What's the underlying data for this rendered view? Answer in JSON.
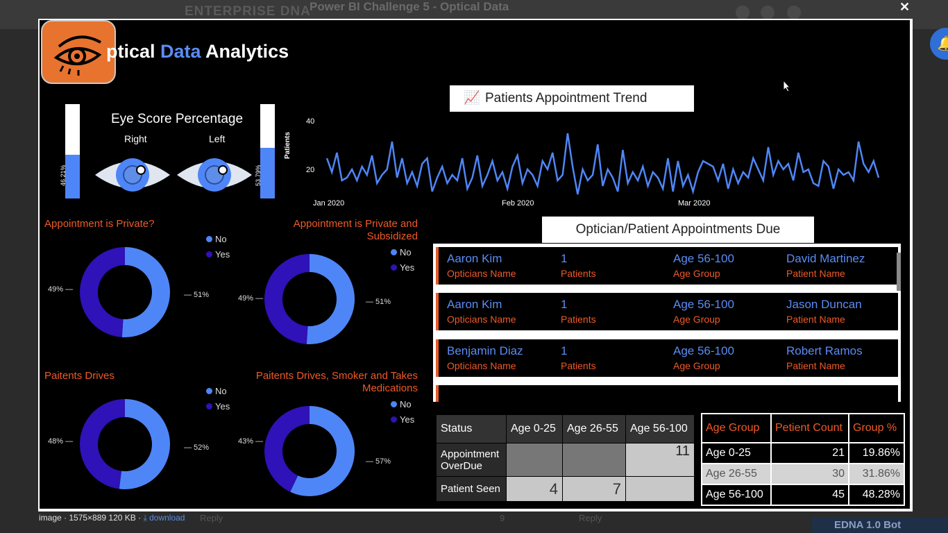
{
  "background": {
    "brand": "ENTERPRISE DNA",
    "page_title": "Power BI Challenge 5 - Optical Data",
    "caption_file": "image · 1575×889 120 KB ·",
    "caption_download": "download",
    "reply_label": "Reply",
    "reply_count": "9",
    "bot_name": "EDNA 1.0 Bot"
  },
  "report": {
    "title_start": "ptical ",
    "title_accent": "Data",
    "title_end": " Analytics",
    "eye_score": {
      "title": "Eye Score Percentage",
      "right_label": "Right",
      "left_label": "Left",
      "right_pct": "46.21%",
      "left_pct": "53.79%",
      "right_value": 0.4621,
      "left_value": 0.5379
    },
    "trend_title": "Patients Appointment Trend",
    "appointments_title": "Optician/Patient Appointments Due",
    "appointments": [
      {
        "optician": "Aaron Kim",
        "patients": "1",
        "age_group": "Age 56-100",
        "patient": "David Martinez"
      },
      {
        "optician": "Aaron Kim",
        "patients": "1",
        "age_group": "Age 56-100",
        "patient": "Jason Duncan"
      },
      {
        "optician": "Benjamin Diaz",
        "patients": "1",
        "age_group": "Age 56-100",
        "patient": "Robert Ramos"
      }
    ],
    "appointment_labels": {
      "optician": "Opticians Name",
      "patients": "Patients",
      "age_group": "Age Group",
      "patient": "Patient Name"
    },
    "status_table": {
      "headers": [
        "Status",
        "Age 0-25",
        "Age 26-55",
        "Age 56-100"
      ],
      "rows": [
        {
          "label": "Appointment OverDue",
          "values": [
            "",
            "",
            "11"
          ]
        },
        {
          "label": "Patient Seen",
          "values": [
            "4",
            "7",
            ""
          ]
        }
      ]
    },
    "age_table": {
      "headers": [
        "Age Group",
        "Petient Count",
        "Group %"
      ],
      "rows": [
        [
          "Age 0-25",
          "21",
          "19.86%"
        ],
        [
          "Age 26-55",
          "30",
          "31.86%"
        ],
        [
          "Age 56-100",
          "45",
          "48.28%"
        ]
      ]
    }
  },
  "colors": {
    "accent": "#5b8cf3",
    "orange": "#f05a28",
    "no": "#4f86f7",
    "yes": "#2f12b8"
  },
  "chart_data": [
    {
      "type": "line",
      "title": "Patients Appointment Trend",
      "ylabel": "Patients",
      "x_ticks": [
        "Jan 2020",
        "Feb 2020",
        "Mar 2020"
      ],
      "y_ticks": [
        20,
        40
      ],
      "ylim": [
        14,
        44
      ],
      "y": [
        28,
        23,
        30,
        20,
        21,
        24,
        20,
        25,
        22,
        29,
        19,
        22,
        24,
        34,
        21,
        28,
        19,
        23,
        18,
        26,
        28,
        16,
        21,
        25,
        19,
        22,
        20,
        28,
        17,
        21,
        29,
        18,
        22,
        27,
        20,
        23,
        17,
        25,
        29,
        19,
        24,
        22,
        18,
        27,
        24,
        30,
        20,
        22,
        37,
        25,
        15,
        24,
        20,
        22,
        33,
        18,
        24,
        21,
        16,
        31,
        19,
        23,
        20,
        25,
        18,
        23,
        21,
        17,
        28,
        16,
        27,
        18,
        22,
        16,
        23,
        27,
        26,
        25,
        20,
        26,
        17,
        24,
        19,
        23,
        21,
        28,
        24,
        20,
        32,
        22,
        27,
        24,
        26,
        20,
        30,
        23,
        24,
        19,
        18,
        27,
        25,
        17,
        24,
        22,
        23,
        20,
        34,
        26,
        23,
        27,
        21
      ]
    },
    {
      "type": "pie",
      "title": "Appointment is Private?",
      "labels": [
        "No",
        "Yes"
      ],
      "values": [
        51,
        49
      ]
    },
    {
      "type": "pie",
      "title": "Appointment is Private and Subsidized",
      "labels": [
        "No",
        "Yes"
      ],
      "values": [
        51,
        49
      ]
    },
    {
      "type": "pie",
      "title": "Paitents Drives",
      "labels": [
        "No",
        "Yes"
      ],
      "values": [
        52,
        48
      ]
    },
    {
      "type": "pie",
      "title": "Paitents Drives, Smoker and Takes Medications",
      "labels": [
        "No",
        "Yes"
      ],
      "values": [
        57,
        43
      ]
    }
  ]
}
